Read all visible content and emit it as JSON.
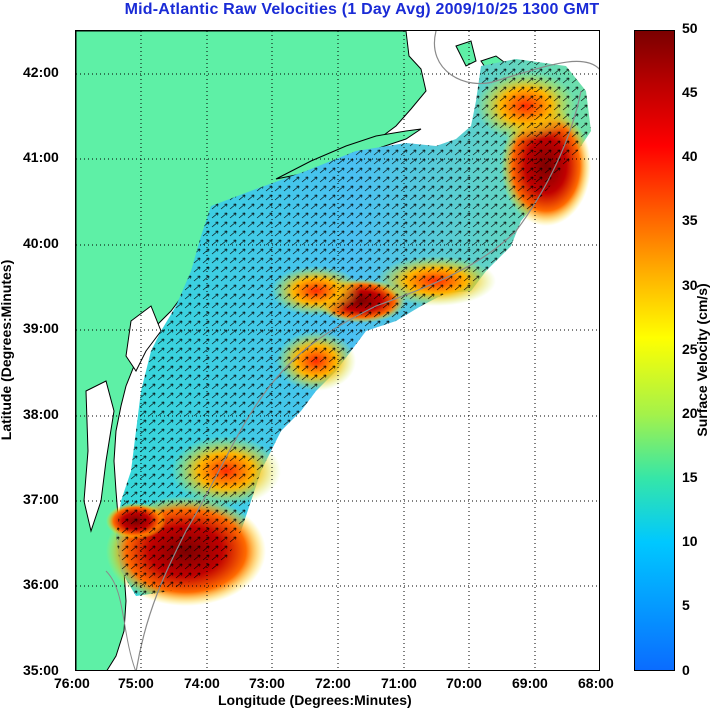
{
  "title": "Mid-Atlantic Raw Velocities (1 Day Avg) 2009/10/25 1300 GMT",
  "x_axis_label": "Longitude (Degrees:Minutes)",
  "y_axis_label": "Latitude (Degrees:Minutes)",
  "x_ticks": [
    "76:00",
    "75:00",
    "74:00",
    "73:00",
    "72:00",
    "71:00",
    "70:00",
    "69:00",
    "68:00"
  ],
  "y_ticks": [
    "42:00",
    "41:00",
    "40:00",
    "39:00",
    "38:00",
    "37:00",
    "36:00",
    "35:00"
  ],
  "colorbar": {
    "label": "Surface Velocity (cm/s)",
    "ticks": [
      "50",
      "45",
      "40",
      "35",
      "30",
      "25",
      "20",
      "15",
      "10",
      "5",
      "0"
    ],
    "range": [
      0,
      50
    ]
  },
  "colors": {
    "land": "#5ef0a6",
    "title": "#1a2bd6",
    "grid": "#000000"
  }
}
